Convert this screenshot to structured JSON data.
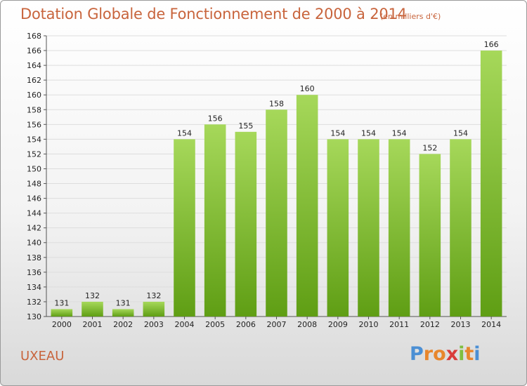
{
  "title": "Dotation Globale de Fonctionnement de 2000 à 2014",
  "subtitle": "(en milliers d'€)",
  "commune": "UXEAU",
  "logo": {
    "text": "Proxiti",
    "letters": [
      "P",
      "r",
      "o",
      "x",
      "i",
      "t",
      "i"
    ],
    "colors": [
      "#4b8fd4",
      "#e8862c",
      "#e8862c",
      "#d93b3b",
      "#7fbf3f",
      "#e8862c",
      "#4b8fd4"
    ]
  },
  "colors": {
    "title": "#c8643c",
    "bar_top": "#a6d85a",
    "bar_bottom": "#5f9e14",
    "grid": "#dddddd",
    "axis": "#555555"
  },
  "chart_data": {
    "type": "bar",
    "title": "Dotation Globale de Fonctionnement de 2000 à 2014",
    "subtitle": "(en milliers d'€)",
    "categories": [
      "2000",
      "2001",
      "2002",
      "2003",
      "2004",
      "2005",
      "2006",
      "2007",
      "2008",
      "2009",
      "2010",
      "2011",
      "2012",
      "2013",
      "2014"
    ],
    "values": [
      131,
      132,
      131,
      132,
      154,
      156,
      155,
      158,
      160,
      154,
      154,
      154,
      152,
      154,
      166
    ],
    "ylim": [
      130,
      168
    ],
    "yticks": [
      130,
      132,
      134,
      136,
      138,
      140,
      142,
      144,
      146,
      148,
      150,
      152,
      154,
      156,
      158,
      160,
      162,
      164,
      166,
      168
    ],
    "grid": true,
    "xlabel": "",
    "ylabel": ""
  }
}
